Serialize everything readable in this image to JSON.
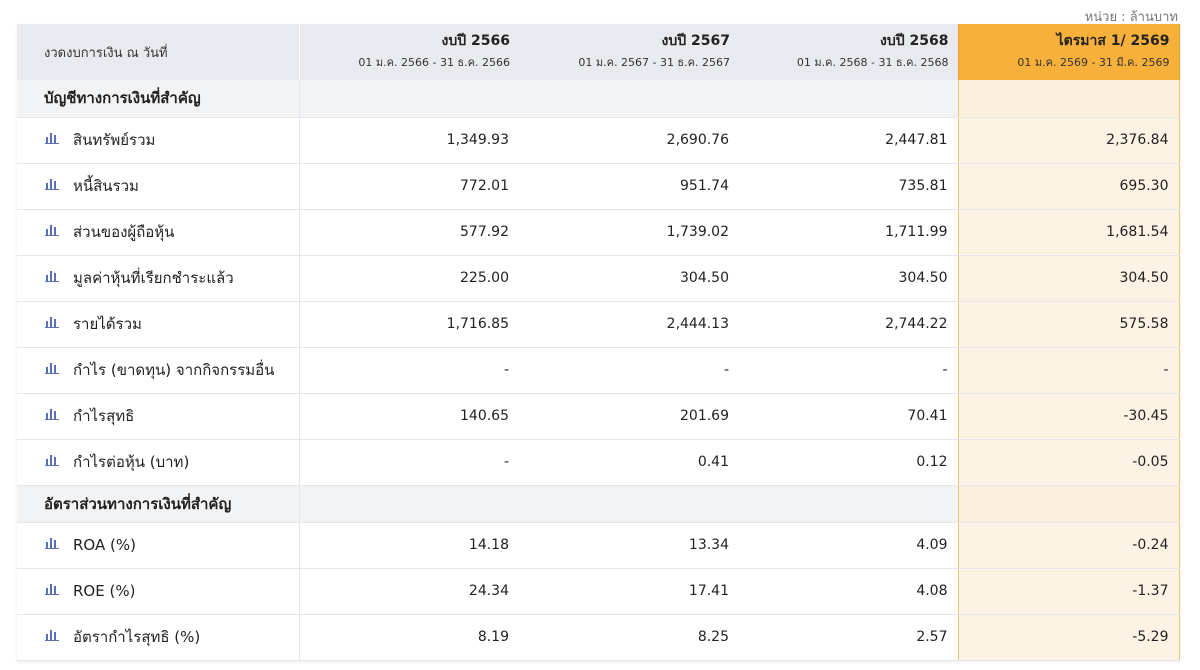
{
  "unit_note": "หน่วย : ล้านบาท",
  "header": {
    "label": "งวดงบการเงิน ณ วันที่",
    "columns": [
      {
        "title": "งบปี 2566",
        "range": "01 ม.ค. 2566 - 31 ธ.ค. 2566"
      },
      {
        "title": "งบปี 2567",
        "range": "01 ม.ค. 2567 - 31 ธ.ค. 2567"
      },
      {
        "title": "งบปี 2568",
        "range": "01 ม.ค. 2568 - 31 ธ.ค. 2568"
      },
      {
        "title": "ไตรมาส 1/ 2569",
        "range": "01 ม.ค. 2569 - 31 มี.ค. 2569"
      }
    ]
  },
  "sections": [
    {
      "title": "บัญชีทางการเงินที่สำคัญ",
      "rows": [
        {
          "label": "สินทรัพย์รวม",
          "values": [
            "1,349.93",
            "2,690.76",
            "2,447.81",
            "2,376.84"
          ]
        },
        {
          "label": "หนี้สินรวม",
          "values": [
            "772.01",
            "951.74",
            "735.81",
            "695.30"
          ]
        },
        {
          "label": "ส่วนของผู้ถือหุ้น",
          "values": [
            "577.92",
            "1,739.02",
            "1,711.99",
            "1,681.54"
          ]
        },
        {
          "label": "มูลค่าหุ้นที่เรียกชำระแล้ว",
          "values": [
            "225.00",
            "304.50",
            "304.50",
            "304.50"
          ]
        },
        {
          "label": "รายได้รวม",
          "values": [
            "1,716.85",
            "2,444.13",
            "2,744.22",
            "575.58"
          ]
        },
        {
          "label": "กำไร (ขาดทุน) จากกิจกรรมอื่น",
          "values": [
            "-",
            "-",
            "-",
            "-"
          ]
        },
        {
          "label": "กำไรสุทธิ",
          "values": [
            "140.65",
            "201.69",
            "70.41",
            "-30.45"
          ]
        },
        {
          "label": "กำไรต่อหุ้น (บาท)",
          "values": [
            "-",
            "0.41",
            "0.12",
            "-0.05"
          ]
        }
      ]
    },
    {
      "title": "อัตราส่วนทางการเงินที่สำคัญ",
      "rows": [
        {
          "label": "ROA (%)",
          "values": [
            "14.18",
            "13.34",
            "4.09",
            "-0.24"
          ]
        },
        {
          "label": "ROE (%)",
          "values": [
            "24.34",
            "17.41",
            "4.08",
            "-1.37"
          ]
        },
        {
          "label": "อัตรากำไรสุทธิ (%)",
          "values": [
            "8.19",
            "8.25",
            "2.57",
            "-5.29"
          ]
        }
      ]
    }
  ],
  "colors": {
    "highlight_header": "#f7b13a",
    "highlight_cell": "#fdf3e4",
    "header_bg": "#e8eaef",
    "icon": "#5b6fb8"
  },
  "icons": {
    "row_icon": "bar-chart-icon"
  }
}
